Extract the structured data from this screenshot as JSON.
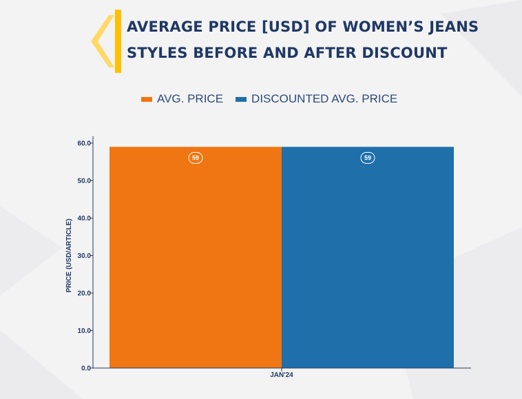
{
  "title_line1": "AVERAGE PRICE [USD] OF WOMEN’S JEANS",
  "title_line2": "STYLES BEFORE AND AFTER DISCOUNT",
  "colors": {
    "avg": "#ef7612",
    "discounted": "#1f6faa",
    "accent": "#ffc000",
    "text": "#1f3864"
  },
  "chart_data": {
    "type": "bar",
    "categories": [
      "JAN'24"
    ],
    "series": [
      {
        "name": "AVG. PRICE",
        "values": [
          59
        ],
        "color": "#ef7612"
      },
      {
        "name": "DISCOUNTED AVG. PRICE",
        "values": [
          59
        ],
        "color": "#1f6faa"
      }
    ],
    "data_labels": [
      "59",
      "59"
    ],
    "ylabel": "PRICE (USD/ARTICLE)",
    "ylim": [
      0,
      60
    ],
    "yticks": [
      "0.0",
      "10.0",
      "20.0",
      "30.0",
      "40.0",
      "50.0",
      "60.0"
    ],
    "grid": false,
    "legend": "top"
  }
}
